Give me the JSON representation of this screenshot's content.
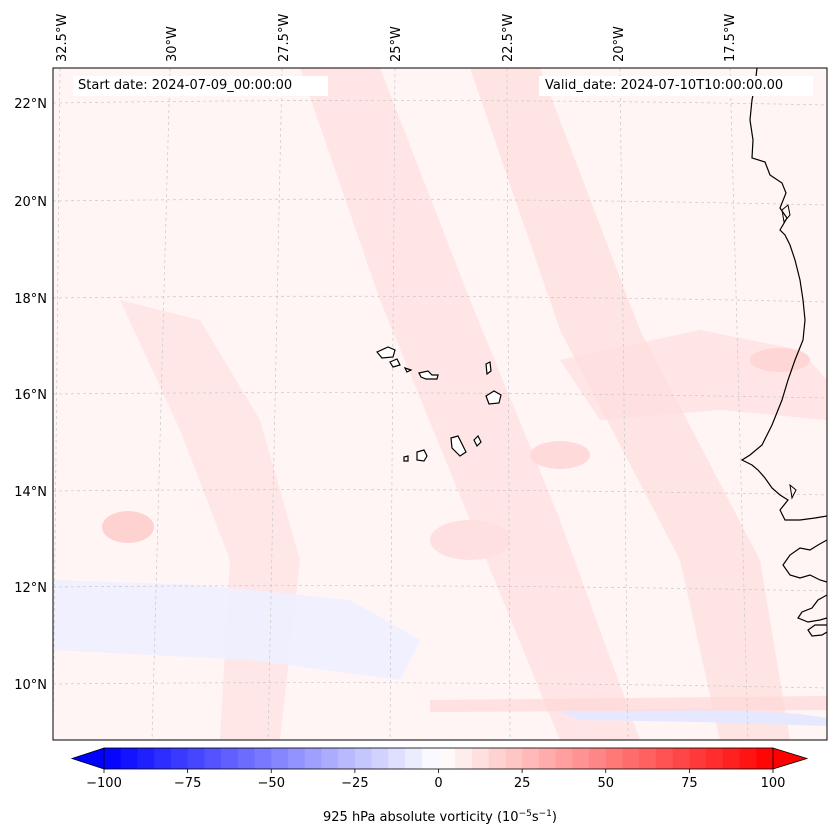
{
  "header": {
    "start_date": "Start date: 2024-07-09_00:00:00",
    "valid_date": "Valid_date: 2024-07-10T10:00:00.00"
  },
  "map": {
    "longitude_labels": [
      "32.5°W",
      "30°W",
      "27.5°W",
      "25°W",
      "22.5°W",
      "20°W",
      "17.5°W"
    ],
    "latitude_labels": [
      "22°N",
      "20°N",
      "18°N",
      "16°N",
      "14°N",
      "12°N",
      "10°N"
    ],
    "field": "925 hPa absolute vorticity",
    "colors": {
      "coast": "#000000",
      "grid": "#c8c8c8",
      "ocean_tint": "#fff4f4",
      "positive_band": "#ffdcdc",
      "negative_band": "#eef0ff"
    }
  },
  "colorbar": {
    "tick_labels": [
      "−100",
      "−75",
      "−50",
      "−25",
      "0",
      "25",
      "50",
      "75",
      "100"
    ],
    "label_prefix": "925 hPa absolute vorticity (10",
    "label_exp1": "−5",
    "label_mid": "s",
    "label_exp2": "−1",
    "label_suffix": ")",
    "min": -100,
    "max": 100,
    "step": 5,
    "cmap": [
      "#0000ff",
      "#ffffff",
      "#ff0000"
    ]
  }
}
